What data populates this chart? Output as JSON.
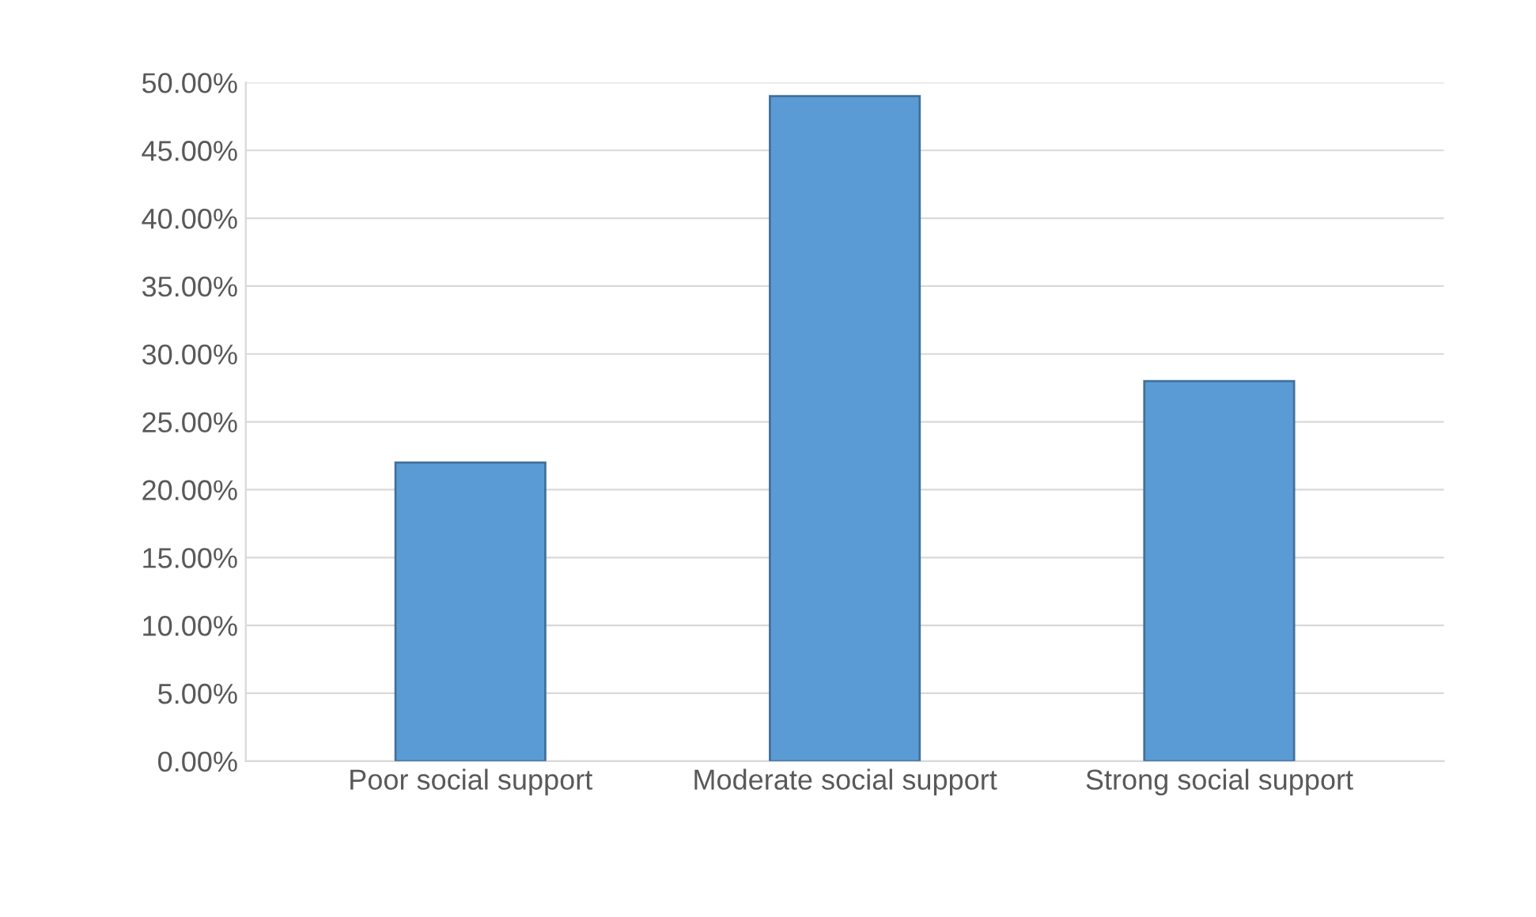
{
  "chart_data": {
    "type": "bar",
    "categories": [
      "Poor social support",
      "Moderate social support",
      "Strong social support"
    ],
    "values": [
      22,
      49,
      28
    ],
    "color": "#5b9bd5",
    "ylim": [
      0,
      50
    ],
    "yticks": [
      {
        "value": 0,
        "label": "0.00%"
      },
      {
        "value": 5,
        "label": "5.00%"
      },
      {
        "value": 10,
        "label": "10.00%"
      },
      {
        "value": 15,
        "label": "15.00%"
      },
      {
        "value": 20,
        "label": "20.00%"
      },
      {
        "value": 25,
        "label": "25.00%"
      },
      {
        "value": 30,
        "label": "30.00%"
      },
      {
        "value": 35,
        "label": "35.00%"
      },
      {
        "value": 40,
        "label": "40.00%"
      },
      {
        "value": 45,
        "label": "45.00%"
      },
      {
        "value": 50,
        "label": "50.00%"
      }
    ],
    "grid": "y"
  }
}
